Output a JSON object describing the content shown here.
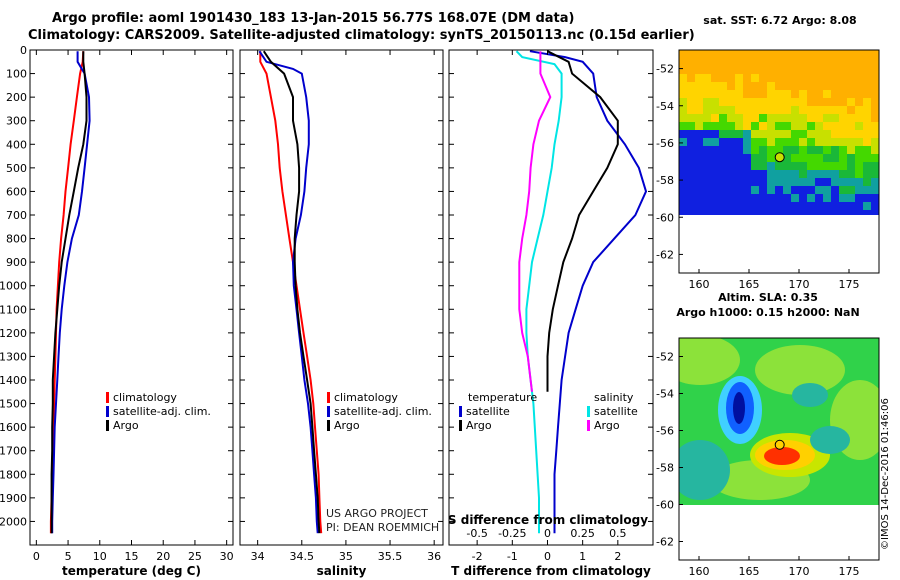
{
  "title_line1": "Argo profile: aoml 1901430_183 13-Jan-2015 56.77S 168.07E (DM data)",
  "title_line2": "Climatology: CARS2009. Satellite-adjusted climatology: synTS_20150113.nc (0.15d earlier)",
  "credit_line1": "US ARGO PROJECT",
  "credit_line2": "PI: DEAN ROEMMICH",
  "timestamp": "©IMOS 14-Dec-2016 01:46:06",
  "colors": {
    "climatology": "#ff0000",
    "satellite": "#0000cc",
    "argo": "#000000",
    "s_satellite": "#00e5e5",
    "s_argo": "#ff00ff"
  },
  "chart_data": [
    {
      "type": "line",
      "xlabel": "temperature (deg C)",
      "ylabel": "",
      "xlim": [
        -1,
        31
      ],
      "ylim": [
        2100,
        0
      ],
      "xticks": [
        0,
        5,
        10,
        15,
        20,
        25,
        30
      ],
      "yticks": [
        0,
        100,
        200,
        300,
        400,
        500,
        600,
        700,
        800,
        900,
        1000,
        1100,
        1200,
        1300,
        1400,
        1500,
        1600,
        1700,
        1800,
        1900,
        2000
      ],
      "legend": [
        "climatology",
        "satellite-adj. clim.",
        "Argo"
      ],
      "legend_position": "lower-right",
      "series": [
        {
          "name": "climatology",
          "color": "#ff0000",
          "points": [
            [
              7.4,
              5
            ],
            [
              7.3,
              50
            ],
            [
              6.9,
              100
            ],
            [
              6.4,
              200
            ],
            [
              5.9,
              300
            ],
            [
              5.4,
              400
            ],
            [
              5.0,
              500
            ],
            [
              4.6,
              600
            ],
            [
              4.3,
              700
            ],
            [
              3.9,
              800
            ],
            [
              3.6,
              900
            ],
            [
              3.4,
              1000
            ],
            [
              3.2,
              1100
            ],
            [
              3.1,
              1200
            ],
            [
              3.0,
              1300
            ],
            [
              2.9,
              1400
            ],
            [
              2.8,
              1500
            ],
            [
              2.7,
              1600
            ],
            [
              2.6,
              1700
            ],
            [
              2.5,
              1800
            ],
            [
              2.4,
              1900
            ],
            [
              2.3,
              2000
            ],
            [
              2.3,
              2050
            ]
          ]
        },
        {
          "name": "satellite-adj. clim.",
          "color": "#0000cc",
          "points": [
            [
              6.5,
              5
            ],
            [
              6.5,
              50
            ],
            [
              7.6,
              100
            ],
            [
              8.3,
              200
            ],
            [
              8.4,
              300
            ],
            [
              8.0,
              400
            ],
            [
              7.6,
              500
            ],
            [
              7.2,
              600
            ],
            [
              6.7,
              700
            ],
            [
              5.6,
              800
            ],
            [
              4.9,
              900
            ],
            [
              4.4,
              1000
            ],
            [
              4.0,
              1100
            ],
            [
              3.7,
              1200
            ],
            [
              3.5,
              1300
            ],
            [
              3.3,
              1400
            ],
            [
              3.1,
              1500
            ],
            [
              2.9,
              1600
            ],
            [
              2.8,
              1700
            ],
            [
              2.7,
              1800
            ],
            [
              2.6,
              1900
            ],
            [
              2.5,
              2000
            ],
            [
              2.5,
              2050
            ]
          ]
        },
        {
          "name": "Argo",
          "color": "#000000",
          "points": [
            [
              7.4,
              5
            ],
            [
              7.4,
              50
            ],
            [
              7.6,
              100
            ],
            [
              7.9,
              200
            ],
            [
              7.9,
              300
            ],
            [
              7.4,
              400
            ],
            [
              6.6,
              500
            ],
            [
              5.9,
              600
            ],
            [
              5.2,
              700
            ],
            [
              4.6,
              800
            ],
            [
              4.0,
              900
            ],
            [
              3.6,
              1000
            ],
            [
              3.3,
              1100
            ],
            [
              3.0,
              1200
            ],
            [
              2.8,
              1300
            ],
            [
              2.6,
              1400
            ],
            [
              2.6,
              1500
            ],
            [
              2.5,
              1600
            ],
            [
              2.5,
              1700
            ],
            [
              2.4,
              1800
            ],
            [
              2.4,
              1900
            ],
            [
              2.4,
              2000
            ],
            [
              2.4,
              2050
            ]
          ]
        }
      ]
    },
    {
      "type": "line",
      "xlabel": "salinity",
      "ylabel": "",
      "xlim": [
        33.8,
        36.1
      ],
      "ylim": [
        2100,
        0
      ],
      "xticks": [
        34,
        34.5,
        35,
        35.5,
        36
      ],
      "legend": [
        "climatology",
        "satellite-adj. clim.",
        "Argo"
      ],
      "legend_position": "lower-right",
      "series": [
        {
          "name": "climatology",
          "color": "#ff0000",
          "points": [
            [
              34.03,
              5
            ],
            [
              34.03,
              50
            ],
            [
              34.1,
              100
            ],
            [
              34.15,
              200
            ],
            [
              34.2,
              300
            ],
            [
              34.23,
              400
            ],
            [
              34.25,
              500
            ],
            [
              34.28,
              600
            ],
            [
              34.32,
              700
            ],
            [
              34.36,
              800
            ],
            [
              34.4,
              900
            ],
            [
              34.44,
              1000
            ],
            [
              34.48,
              1100
            ],
            [
              34.52,
              1200
            ],
            [
              34.56,
              1300
            ],
            [
              34.6,
              1400
            ],
            [
              34.63,
              1500
            ],
            [
              34.65,
              1600
            ],
            [
              34.67,
              1700
            ],
            [
              34.69,
              1800
            ],
            [
              34.7,
              1900
            ],
            [
              34.71,
              2000
            ],
            [
              34.72,
              2050
            ]
          ]
        },
        {
          "name": "satellite-adj. clim.",
          "color": "#0000cc",
          "points": [
            [
              34.02,
              5
            ],
            [
              34.1,
              50
            ],
            [
              34.4,
              80
            ],
            [
              34.5,
              100
            ],
            [
              34.55,
              200
            ],
            [
              34.58,
              300
            ],
            [
              34.58,
              400
            ],
            [
              34.55,
              500
            ],
            [
              34.53,
              600
            ],
            [
              34.49,
              700
            ],
            [
              34.43,
              800
            ],
            [
              34.4,
              900
            ],
            [
              34.41,
              1000
            ],
            [
              34.44,
              1100
            ],
            [
              34.47,
              1200
            ],
            [
              34.5,
              1300
            ],
            [
              34.53,
              1400
            ],
            [
              34.57,
              1500
            ],
            [
              34.6,
              1600
            ],
            [
              34.62,
              1700
            ],
            [
              34.64,
              1800
            ],
            [
              34.66,
              1900
            ],
            [
              34.67,
              2000
            ],
            [
              34.68,
              2050
            ]
          ]
        },
        {
          "name": "Argo",
          "color": "#000000",
          "points": [
            [
              34.07,
              5
            ],
            [
              34.15,
              50
            ],
            [
              34.3,
              100
            ],
            [
              34.4,
              200
            ],
            [
              34.4,
              300
            ],
            [
              34.45,
              400
            ],
            [
              34.47,
              500
            ],
            [
              34.47,
              600
            ],
            [
              34.44,
              700
            ],
            [
              34.42,
              800
            ],
            [
              34.42,
              900
            ],
            [
              34.43,
              1000
            ],
            [
              34.45,
              1100
            ],
            [
              34.48,
              1200
            ],
            [
              34.52,
              1300
            ],
            [
              34.56,
              1400
            ],
            [
              34.6,
              1500
            ],
            [
              34.62,
              1600
            ],
            [
              34.64,
              1700
            ],
            [
              34.66,
              1800
            ],
            [
              34.68,
              1900
            ],
            [
              34.69,
              2000
            ],
            [
              34.7,
              2050
            ]
          ]
        }
      ]
    },
    {
      "type": "line",
      "xlabel": "T difference from climatology",
      "x2label": "S difference from climatology",
      "xlim": [
        -2.8,
        3.0
      ],
      "ylim": [
        2100,
        0
      ],
      "xticks": [
        -2,
        -1,
        0,
        1,
        2
      ],
      "x2ticks": [
        "-0.5",
        "-0.25",
        "0",
        "0.25",
        "0.5"
      ],
      "legend_titles": [
        "temperature",
        "salinity"
      ],
      "legend": [
        "satellite",
        "Argo",
        "satellite",
        "Argo"
      ],
      "legend_position": "lower-center",
      "series": [
        {
          "name": "satellite",
          "quantity": "temperature",
          "color": "#0000cc",
          "points": [
            [
              -0.5,
              5
            ],
            [
              0.5,
              30
            ],
            [
              1.0,
              50
            ],
            [
              1.3,
              100
            ],
            [
              1.4,
              200
            ],
            [
              1.7,
              300
            ],
            [
              2.2,
              400
            ],
            [
              2.6,
              500
            ],
            [
              2.8,
              600
            ],
            [
              2.5,
              700
            ],
            [
              1.9,
              800
            ],
            [
              1.3,
              900
            ],
            [
              1.0,
              1000
            ],
            [
              0.8,
              1100
            ],
            [
              0.6,
              1200
            ],
            [
              0.5,
              1300
            ],
            [
              0.4,
              1400
            ],
            [
              0.35,
              1500
            ],
            [
              0.3,
              1600
            ],
            [
              0.25,
              1700
            ],
            [
              0.2,
              1800
            ],
            [
              0.2,
              1900
            ],
            [
              0.2,
              2000
            ],
            [
              0.2,
              2050
            ]
          ]
        },
        {
          "name": "Argo",
          "quantity": "temperature",
          "color": "#000000",
          "points": [
            [
              0.0,
              5
            ],
            [
              0.6,
              50
            ],
            [
              0.7,
              100
            ],
            [
              1.5,
              200
            ],
            [
              2.0,
              300
            ],
            [
              2.0,
              400
            ],
            [
              1.7,
              500
            ],
            [
              1.3,
              600
            ],
            [
              0.9,
              700
            ],
            [
              0.7,
              800
            ],
            [
              0.45,
              900
            ],
            [
              0.3,
              1000
            ],
            [
              0.15,
              1100
            ],
            [
              0.05,
              1200
            ],
            [
              0.0,
              1300
            ],
            [
              0.0,
              1400
            ],
            [
              0.0,
              1450
            ]
          ]
        },
        {
          "name": "satellite",
          "quantity": "salinity",
          "color": "#00e5e5",
          "points": [
            [
              -0.22,
              5
            ],
            [
              -0.18,
              30
            ],
            [
              0.05,
              60
            ],
            [
              0.1,
              100
            ],
            [
              0.1,
              200
            ],
            [
              0.08,
              300
            ],
            [
              0.05,
              400
            ],
            [
              0.03,
              500
            ],
            [
              0.0,
              600
            ],
            [
              -0.03,
              700
            ],
            [
              -0.07,
              800
            ],
            [
              -0.11,
              900
            ],
            [
              -0.13,
              1000
            ],
            [
              -0.15,
              1100
            ],
            [
              -0.15,
              1200
            ],
            [
              -0.14,
              1300
            ],
            [
              -0.12,
              1400
            ],
            [
              -0.1,
              1500
            ],
            [
              -0.09,
              1600
            ],
            [
              -0.08,
              1700
            ],
            [
              -0.07,
              1800
            ],
            [
              -0.06,
              1900
            ],
            [
              -0.06,
              2000
            ],
            [
              -0.06,
              2050
            ]
          ]
        },
        {
          "name": "Argo",
          "quantity": "salinity",
          "color": "#ff00ff",
          "points": [
            [
              -0.05,
              5
            ],
            [
              -0.05,
              100
            ],
            [
              0.02,
              200
            ],
            [
              -0.06,
              300
            ],
            [
              -0.1,
              400
            ],
            [
              -0.12,
              500
            ],
            [
              -0.13,
              600
            ],
            [
              -0.15,
              700
            ],
            [
              -0.18,
              800
            ],
            [
              -0.2,
              900
            ],
            [
              -0.2,
              1000
            ],
            [
              -0.2,
              1100
            ],
            [
              -0.18,
              1200
            ],
            [
              -0.14,
              1300
            ],
            [
              -0.12,
              1400
            ],
            [
              -0.11,
              1450
            ]
          ]
        }
      ]
    },
    {
      "type": "heatmap",
      "title": "sat. SST: 6.72 Argo: 8.08",
      "xlim": [
        158,
        178
      ],
      "ylim": [
        -63,
        -51
      ],
      "xticks": [
        160,
        165,
        170,
        175
      ],
      "yticks": [
        -52,
        -54,
        -56,
        -58,
        -60,
        -62
      ],
      "marker": [
        168.07,
        -56.77
      ]
    },
    {
      "type": "heatmap",
      "title_line1": "Altim. SLA: 0.35",
      "title_line2": "Argo h1000: 0.15 h2000: NaN",
      "xlim": [
        158,
        178
      ],
      "ylim": [
        -63,
        -51
      ],
      "xticks": [
        160,
        165,
        170,
        175
      ],
      "yticks": [
        -52,
        -54,
        -56,
        -58,
        -60,
        -62
      ],
      "marker": [
        168.07,
        -56.77
      ]
    }
  ]
}
